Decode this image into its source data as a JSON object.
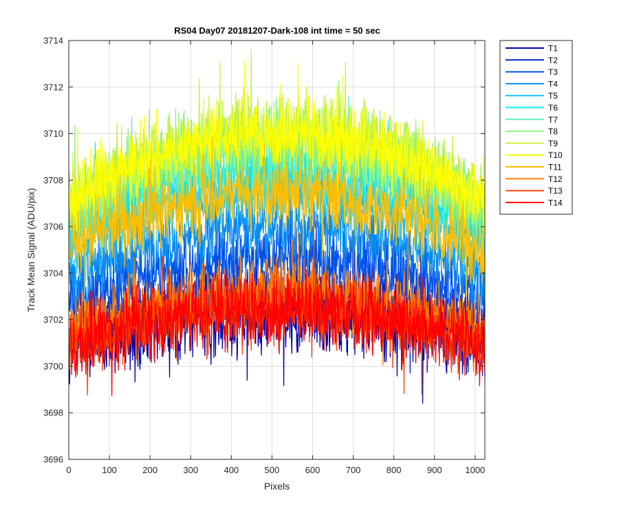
{
  "chart_data": {
    "type": "line",
    "title": "RS04 Day07 20181207-Dark-108 int time = 50 sec",
    "xlabel": "Pixels",
    "ylabel": "Track Mean Signal (ADU/pix)",
    "xlim": [
      0,
      1024
    ],
    "ylim": [
      3696,
      3714
    ],
    "x_ticks": [
      0,
      100,
      200,
      300,
      400,
      500,
      600,
      700,
      800,
      900,
      1000
    ],
    "y_ticks": [
      3696,
      3698,
      3700,
      3702,
      3704,
      3706,
      3708,
      3710,
      3712,
      3714
    ],
    "grid": true,
    "legend_position": "outside-top-right",
    "x_points": 1024,
    "series": [
      {
        "name": "T1",
        "color": "#0000aa",
        "edge_mean": 3701.0,
        "center_mean": 3702.0,
        "noise_amplitude": 1.3
      },
      {
        "name": "T2",
        "color": "#0020cc",
        "edge_mean": 3701.8,
        "center_mean": 3703.2,
        "noise_amplitude": 1.2
      },
      {
        "name": "T3",
        "color": "#0050e8",
        "edge_mean": 3702.8,
        "center_mean": 3704.6,
        "noise_amplitude": 1.2
      },
      {
        "name": "T4",
        "color": "#0a8cf0",
        "edge_mean": 3703.8,
        "center_mean": 3706.0,
        "noise_amplitude": 1.2
      },
      {
        "name": "T5",
        "color": "#18c0f4",
        "edge_mean": 3705.0,
        "center_mean": 3707.6,
        "noise_amplitude": 1.3
      },
      {
        "name": "T6",
        "color": "#10e8ec",
        "edge_mean": 3705.8,
        "center_mean": 3708.6,
        "noise_amplitude": 1.3
      },
      {
        "name": "T7",
        "color": "#5cf0c0",
        "edge_mean": 3706.4,
        "center_mean": 3709.2,
        "noise_amplitude": 1.3
      },
      {
        "name": "T8",
        "color": "#8ef27e",
        "edge_mean": 3707.0,
        "center_mean": 3709.8,
        "noise_amplitude": 1.3
      },
      {
        "name": "T9",
        "color": "#c6f23c",
        "edge_mean": 3707.2,
        "center_mean": 3710.2,
        "noise_amplitude": 1.3
      },
      {
        "name": "T10",
        "color": "#ffff00",
        "edge_mean": 3707.0,
        "center_mean": 3710.0,
        "noise_amplitude": 1.3
      },
      {
        "name": "T11",
        "color": "#ffbf00",
        "edge_mean": 3705.0,
        "center_mean": 3707.5,
        "noise_amplitude": 1.3
      },
      {
        "name": "T12",
        "color": "#ff8000",
        "edge_mean": 3701.5,
        "center_mean": 3703.2,
        "noise_amplitude": 1.2
      },
      {
        "name": "T13",
        "color": "#ff4000",
        "edge_mean": 3700.8,
        "center_mean": 3702.5,
        "noise_amplitude": 1.2
      },
      {
        "name": "T14",
        "color": "#ff0000",
        "edge_mean": 3700.8,
        "center_mean": 3702.5,
        "noise_amplitude": 1.3
      }
    ]
  }
}
